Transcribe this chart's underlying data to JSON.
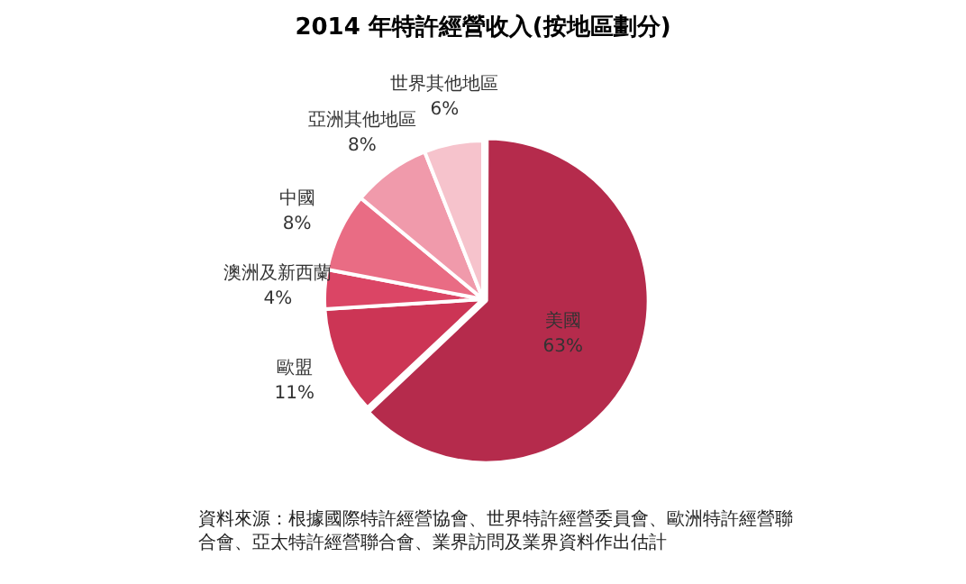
{
  "chart_data": {
    "type": "pie",
    "title": "2014 年特許經營收入(按地區劃分)",
    "categories": [
      "美國",
      "歐盟",
      "澳洲及新西蘭",
      "中國",
      "亞洲其他地區",
      "世界其他地區"
    ],
    "values": [
      63,
      11,
      4,
      8,
      8,
      6
    ],
    "value_labels": [
      "63%",
      "11%",
      "4%",
      "8%",
      "8%",
      "6%"
    ],
    "colors": [
      "#b52b4c",
      "#cc3555",
      "#db4565",
      "#e96c84",
      "#f09aab",
      "#f6c3cc"
    ],
    "legend": false,
    "annotations": [
      "資料來源：根據國際特許經營協會、世界特許經營委員會、歐洲特許經營聯合會、亞太特許經營聯合會、業界訪問及業界資料作出估計"
    ]
  }
}
